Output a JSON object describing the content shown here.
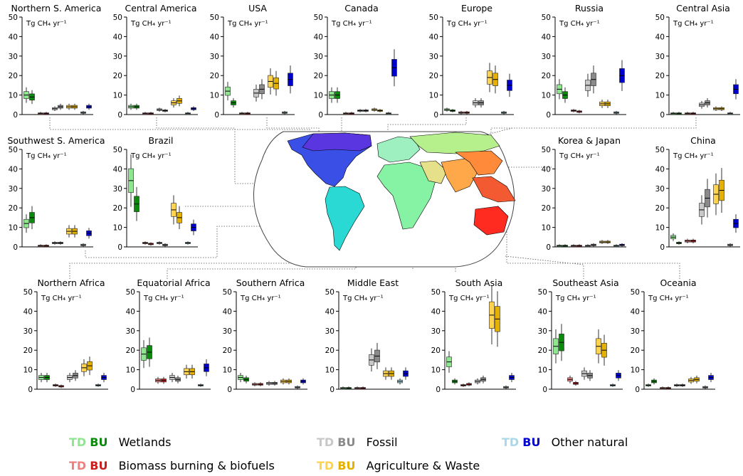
{
  "unit_label": "Tg CH₄ yr⁻¹",
  "y_ticks": [
    0,
    10,
    20,
    30,
    40,
    50
  ],
  "categories": [
    "Wetlands",
    "Biomass burning & biofuels",
    "Fossil",
    "Agriculture & Waste",
    "Other natural"
  ],
  "colors": {
    "Wetlands": {
      "td": "#8ee68e",
      "bu": "#0a8a0a"
    },
    "Biomass burning & biofuels": {
      "td": "#f08080",
      "bu": "#c81e1e"
    },
    "Fossil": {
      "td": "#c8c8c8",
      "bu": "#8a8a8a"
    },
    "Agriculture & Waste": {
      "td": "#ffd34d",
      "bu": "#e6b000"
    },
    "Other natural": {
      "td": "#a8d8ea",
      "bu": "#0000cc"
    }
  },
  "legend": [
    {
      "td": "TD",
      "bu": "BU",
      "label": "Wetlands",
      "category": "Wetlands"
    },
    {
      "td": "TD",
      "bu": "BU",
      "label": "Fossil",
      "category": "Fossil"
    },
    {
      "td": "TD",
      "bu": "BU",
      "label": "Other natural",
      "category": "Other natural"
    },
    {
      "td": "TD",
      "bu": "BU",
      "label": "Biomass burning & biofuels",
      "category": "Biomass burning & biofuels"
    },
    {
      "td": "TD",
      "bu": "BU",
      "label": "Agriculture & Waste",
      "category": "Agriculture & Waste"
    }
  ],
  "chart_data": [
    {
      "type": "box",
      "title": "Northern S. America",
      "ylim": [
        0,
        50
      ],
      "series": {
        "TD": [
          10,
          0.5,
          3,
          4,
          1
        ],
        "BU": [
          9,
          0.5,
          4,
          4,
          4
        ]
      }
    },
    {
      "type": "box",
      "title": "Central America",
      "ylim": [
        0,
        50
      ],
      "series": {
        "TD": [
          4,
          0.5,
          2.5,
          6,
          0.5
        ],
        "BU": [
          4,
          0.5,
          2,
          7,
          3
        ]
      }
    },
    {
      "type": "box",
      "title": "USA",
      "ylim": [
        0,
        50
      ],
      "series": {
        "TD": [
          12,
          0.5,
          11,
          17,
          1
        ],
        "BU": [
          6,
          0.5,
          13,
          16,
          18
        ]
      }
    },
    {
      "type": "box",
      "title": "Canada",
      "ylim": [
        0,
        50
      ],
      "series": {
        "TD": [
          10,
          0.5,
          2,
          2.5,
          0.5
        ],
        "BU": [
          10,
          0.5,
          2,
          2,
          24
        ]
      }
    },
    {
      "type": "box",
      "title": "Europe",
      "ylim": [
        0,
        50
      ],
      "series": {
        "TD": [
          2.5,
          1,
          6,
          19,
          1
        ],
        "BU": [
          2,
          1,
          6,
          18,
          15
        ]
      }
    },
    {
      "type": "box",
      "title": "Russia",
      "ylim": [
        0,
        50
      ],
      "series": {
        "TD": [
          13,
          2,
          15,
          5.5,
          1
        ],
        "BU": [
          10,
          1.5,
          18,
          5.5,
          20
        ]
      }
    },
    {
      "type": "box",
      "title": "Central Asia",
      "ylim": [
        0,
        50
      ],
      "series": {
        "TD": [
          0.5,
          0.5,
          5,
          3,
          0.5
        ],
        "BU": [
          0.5,
          0.5,
          6,
          3,
          13
        ]
      }
    },
    {
      "type": "box",
      "title": "Southwest S. America",
      "ylim": [
        0,
        50
      ],
      "series": {
        "TD": [
          12,
          0.5,
          2,
          8,
          1
        ],
        "BU": [
          15,
          0.5,
          2,
          8,
          7
        ]
      }
    },
    {
      "type": "box",
      "title": "Brazil",
      "ylim": [
        0,
        50
      ],
      "series": {
        "TD": [
          34,
          2,
          2,
          19,
          2
        ],
        "BU": [
          22,
          1.5,
          1,
          15,
          10
        ]
      }
    },
    {
      "type": "box",
      "title": "Korea & Japan",
      "ylim": [
        0,
        50
      ],
      "series": {
        "TD": [
          0.5,
          0.5,
          0.5,
          2.5,
          0.5
        ],
        "BU": [
          0.5,
          0.5,
          1,
          2.5,
          1
        ]
      }
    },
    {
      "type": "box",
      "title": "China",
      "ylim": [
        0,
        50
      ],
      "series": {
        "TD": [
          5,
          3,
          19,
          27,
          1
        ],
        "BU": [
          2,
          3,
          25,
          29,
          12
        ]
      }
    },
    {
      "type": "box",
      "title": "Northern Africa",
      "ylim": [
        0,
        50
      ],
      "series": {
        "TD": [
          6,
          2,
          6,
          11,
          2
        ],
        "BU": [
          6,
          1.5,
          7,
          12,
          6
        ]
      }
    },
    {
      "type": "box",
      "title": "Equatorial Africa",
      "ylim": [
        0,
        50
      ],
      "series": {
        "TD": [
          18,
          4.5,
          6,
          9,
          2
        ],
        "BU": [
          19,
          4.5,
          5,
          9,
          11
        ]
      }
    },
    {
      "type": "box",
      "title": "Southern Africa",
      "ylim": [
        0,
        50
      ],
      "series": {
        "TD": [
          6,
          2.5,
          3,
          4,
          1
        ],
        "BU": [
          5,
          2.5,
          3,
          4,
          4
        ]
      }
    },
    {
      "type": "box",
      "title": "Middle East",
      "ylim": [
        0,
        50
      ],
      "series": {
        "TD": [
          0.5,
          0.5,
          15,
          8,
          4
        ],
        "BU": [
          0.5,
          0.5,
          17,
          8,
          8
        ]
      }
    },
    {
      "type": "box",
      "title": "South Asia",
      "ylim": [
        0,
        50
      ],
      "series": {
        "TD": [
          14,
          2,
          4,
          38,
          1
        ],
        "BU": [
          4,
          2.5,
          5,
          36,
          6
        ]
      }
    },
    {
      "type": "box",
      "title": "Southeast Asia",
      "ylim": [
        0,
        50
      ],
      "series": {
        "TD": [
          22,
          5,
          8,
          22,
          2
        ],
        "BU": [
          24,
          3,
          7,
          20,
          7
        ]
      }
    },
    {
      "type": "box",
      "title": "Oceania",
      "ylim": [
        0,
        50
      ],
      "series": {
        "TD": [
          2,
          0.5,
          2,
          4.5,
          1
        ],
        "BU": [
          4,
          0.5,
          2,
          5,
          6
        ]
      }
    }
  ]
}
